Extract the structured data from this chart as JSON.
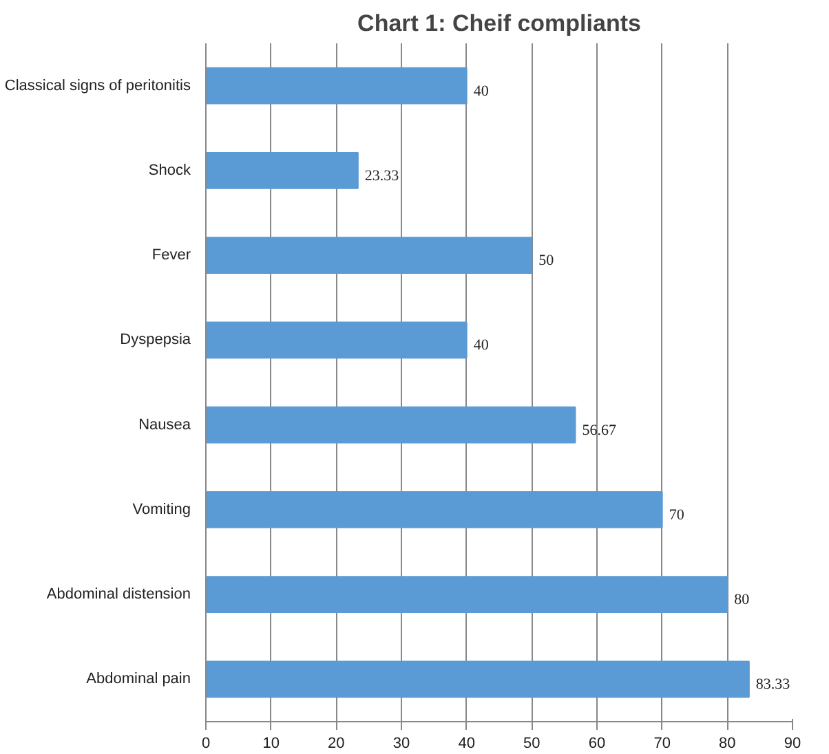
{
  "chart_data": {
    "type": "bar",
    "orientation": "horizontal",
    "title": "Chart 1: Cheif compliants",
    "categories": [
      "Classical signs of peritonitis",
      "Shock",
      "Fever",
      "Dyspepsia",
      "Nausea",
      "Vomiting",
      "Abdominal distension",
      "Abdominal pain"
    ],
    "values": [
      40,
      23.33,
      50,
      40,
      56.67,
      70,
      80,
      83.33
    ],
    "color": "#5b9bd5",
    "xlim": [
      0,
      90
    ],
    "xticks": [
      0,
      10,
      20,
      30,
      40,
      50,
      60,
      70,
      80,
      90
    ],
    "grid": "x",
    "data_labels": true
  }
}
